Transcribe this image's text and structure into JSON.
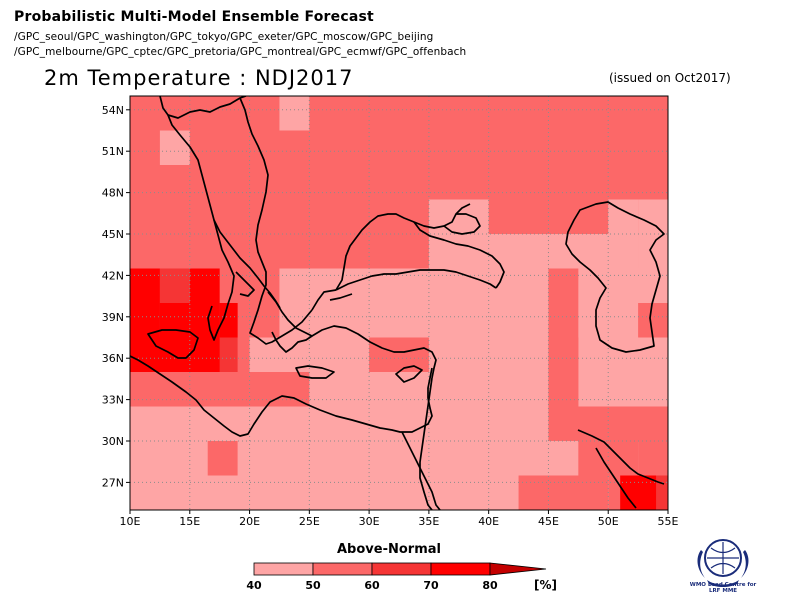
{
  "header": {
    "title": "Probabilistic Multi-Model Ensemble Forecast",
    "centres_line1": "/GPC_seoul/GPC_washington/GPC_tokyo/GPC_exeter/GPC_moscow/GPC_beijing",
    "centres_line2": "/GPC_melbourne/GPC_cptec/GPC_pretoria/GPC_montreal/GPC_ecmwf/GPC_offenbach",
    "variable": "2m Temperature : NDJ2017",
    "issued": "(issued on Oct2017)"
  },
  "map": {
    "lon_range": [
      10,
      55
    ],
    "lat_range": [
      25,
      55
    ],
    "x_ticks": [
      "10E",
      "15E",
      "20E",
      "25E",
      "30E",
      "35E",
      "40E",
      "45E",
      "50E",
      "55E"
    ],
    "y_ticks": [
      "54N",
      "51N",
      "48N",
      "45N",
      "42N",
      "39N",
      "36N",
      "33N",
      "30N",
      "27N"
    ],
    "grid": "dotted",
    "colors": {
      "40-50": "#fea5a5",
      "50-60": "#fc6868",
      "60-70": "#f53535",
      "70-80": "#ff0000",
      "coast": "#000000"
    },
    "default_category": "50-60",
    "regions": [
      {
        "category": "40-50",
        "lon": [
          12.5,
          15
        ],
        "lat": [
          50,
          52.5
        ]
      },
      {
        "category": "40-50",
        "lon": [
          22.5,
          25
        ],
        "lat": [
          52.5,
          55
        ]
      },
      {
        "category": "40-50",
        "lon": [
          50,
          52.5
        ],
        "lat": [
          45,
          47.5
        ]
      },
      {
        "category": "40-50",
        "lon": [
          22.5,
          45
        ],
        "lat": [
          37.5,
          42.5
        ]
      },
      {
        "category": "40-50",
        "lon": [
          47.5,
          52.5
        ],
        "lat": [
          37.5,
          40
        ]
      },
      {
        "category": "40-50",
        "lon": [
          45,
          55
        ],
        "lat": [
          40,
          45
        ]
      },
      {
        "category": "40-50",
        "lon": [
          35,
          45
        ],
        "lat": [
          42.5,
          45
        ]
      },
      {
        "category": "40-50",
        "lon": [
          35,
          40
        ],
        "lat": [
          45,
          47.5
        ]
      },
      {
        "category": "40-50",
        "lon": [
          52.5,
          55
        ],
        "lat": [
          42.5,
          47.5
        ]
      },
      {
        "category": "40-50",
        "lon": [
          10,
          55
        ],
        "lat": [
          25,
          32.5
        ]
      },
      {
        "category": "40-50",
        "lon": [
          20,
          45
        ],
        "lat": [
          32.5,
          37.5
        ]
      },
      {
        "category": "40-50",
        "lon": [
          47.5,
          55
        ],
        "lat": [
          32.5,
          37.5
        ]
      },
      {
        "category": "50-60",
        "lon": [
          10,
          20
        ],
        "lat": [
          32.5,
          35
        ]
      },
      {
        "category": "50-60",
        "lon": [
          20,
          25
        ],
        "lat": [
          32.5,
          35
        ]
      },
      {
        "category": "50-60",
        "lon": [
          30,
          35
        ],
        "lat": [
          35,
          37.5
        ]
      },
      {
        "category": "50-60",
        "lon": [
          45,
          47.5
        ],
        "lat": [
          32.5,
          37.5
        ]
      },
      {
        "category": "50-60",
        "lon": [
          45,
          55
        ],
        "lat": [
          30,
          32.5
        ]
      },
      {
        "category": "50-60",
        "lon": [
          47.5,
          52.5
        ],
        "lat": [
          27.5,
          30
        ]
      },
      {
        "category": "50-60",
        "lon": [
          42.5,
          50
        ],
        "lat": [
          25,
          27.5
        ]
      },
      {
        "category": "50-60",
        "lon": [
          45,
          47.5
        ],
        "lat": [
          40,
          42.5
        ]
      },
      {
        "category": "50-60",
        "lon": [
          52.5,
          55
        ],
        "lat": [
          27.5,
          30
        ]
      },
      {
        "category": "50-60",
        "lon": [
          50,
          52.5
        ],
        "lat": [
          25,
          27.5
        ]
      },
      {
        "category": "50-60",
        "lon": [
          16.5,
          19
        ],
        "lat": [
          27.5,
          30
        ]
      },
      {
        "category": "60-70",
        "lon": [
          10,
          19
        ],
        "lat": [
          35,
          40
        ]
      },
      {
        "category": "60-70",
        "lon": [
          12.5,
          15
        ],
        "lat": [
          40,
          42.5
        ]
      },
      {
        "category": "60-70",
        "lon": [
          52.5,
          55
        ],
        "lat": [
          25,
          27.5
        ]
      },
      {
        "category": "70-80",
        "lon": [
          10,
          12.5
        ],
        "lat": [
          37.5,
          42.5
        ]
      },
      {
        "category": "70-80",
        "lon": [
          10,
          17.5
        ],
        "lat": [
          35,
          37.5
        ]
      },
      {
        "category": "70-80",
        "lon": [
          12.5,
          15
        ],
        "lat": [
          37.5,
          40
        ]
      },
      {
        "category": "70-80",
        "lon": [
          15,
          17.5
        ],
        "lat": [
          37.5,
          42.5
        ]
      },
      {
        "category": "70-80",
        "lon": [
          17.5,
          19
        ],
        "lat": [
          37.5,
          40
        ]
      },
      {
        "category": "70-80",
        "lon": [
          51,
          54
        ],
        "lat": [
          25,
          27.5
        ]
      }
    ]
  },
  "colorbar": {
    "title": "Above-Normal",
    "labels": [
      "40",
      "50",
      "60",
      "70",
      "80"
    ],
    "unit": "[%]",
    "colors": [
      "#fea5a5",
      "#fc6868",
      "#f53535",
      "#ff0000",
      "#c40000"
    ]
  },
  "logo": {
    "text_line1": "WMO Lead Centre for",
    "text_line2": "LRF MME"
  }
}
